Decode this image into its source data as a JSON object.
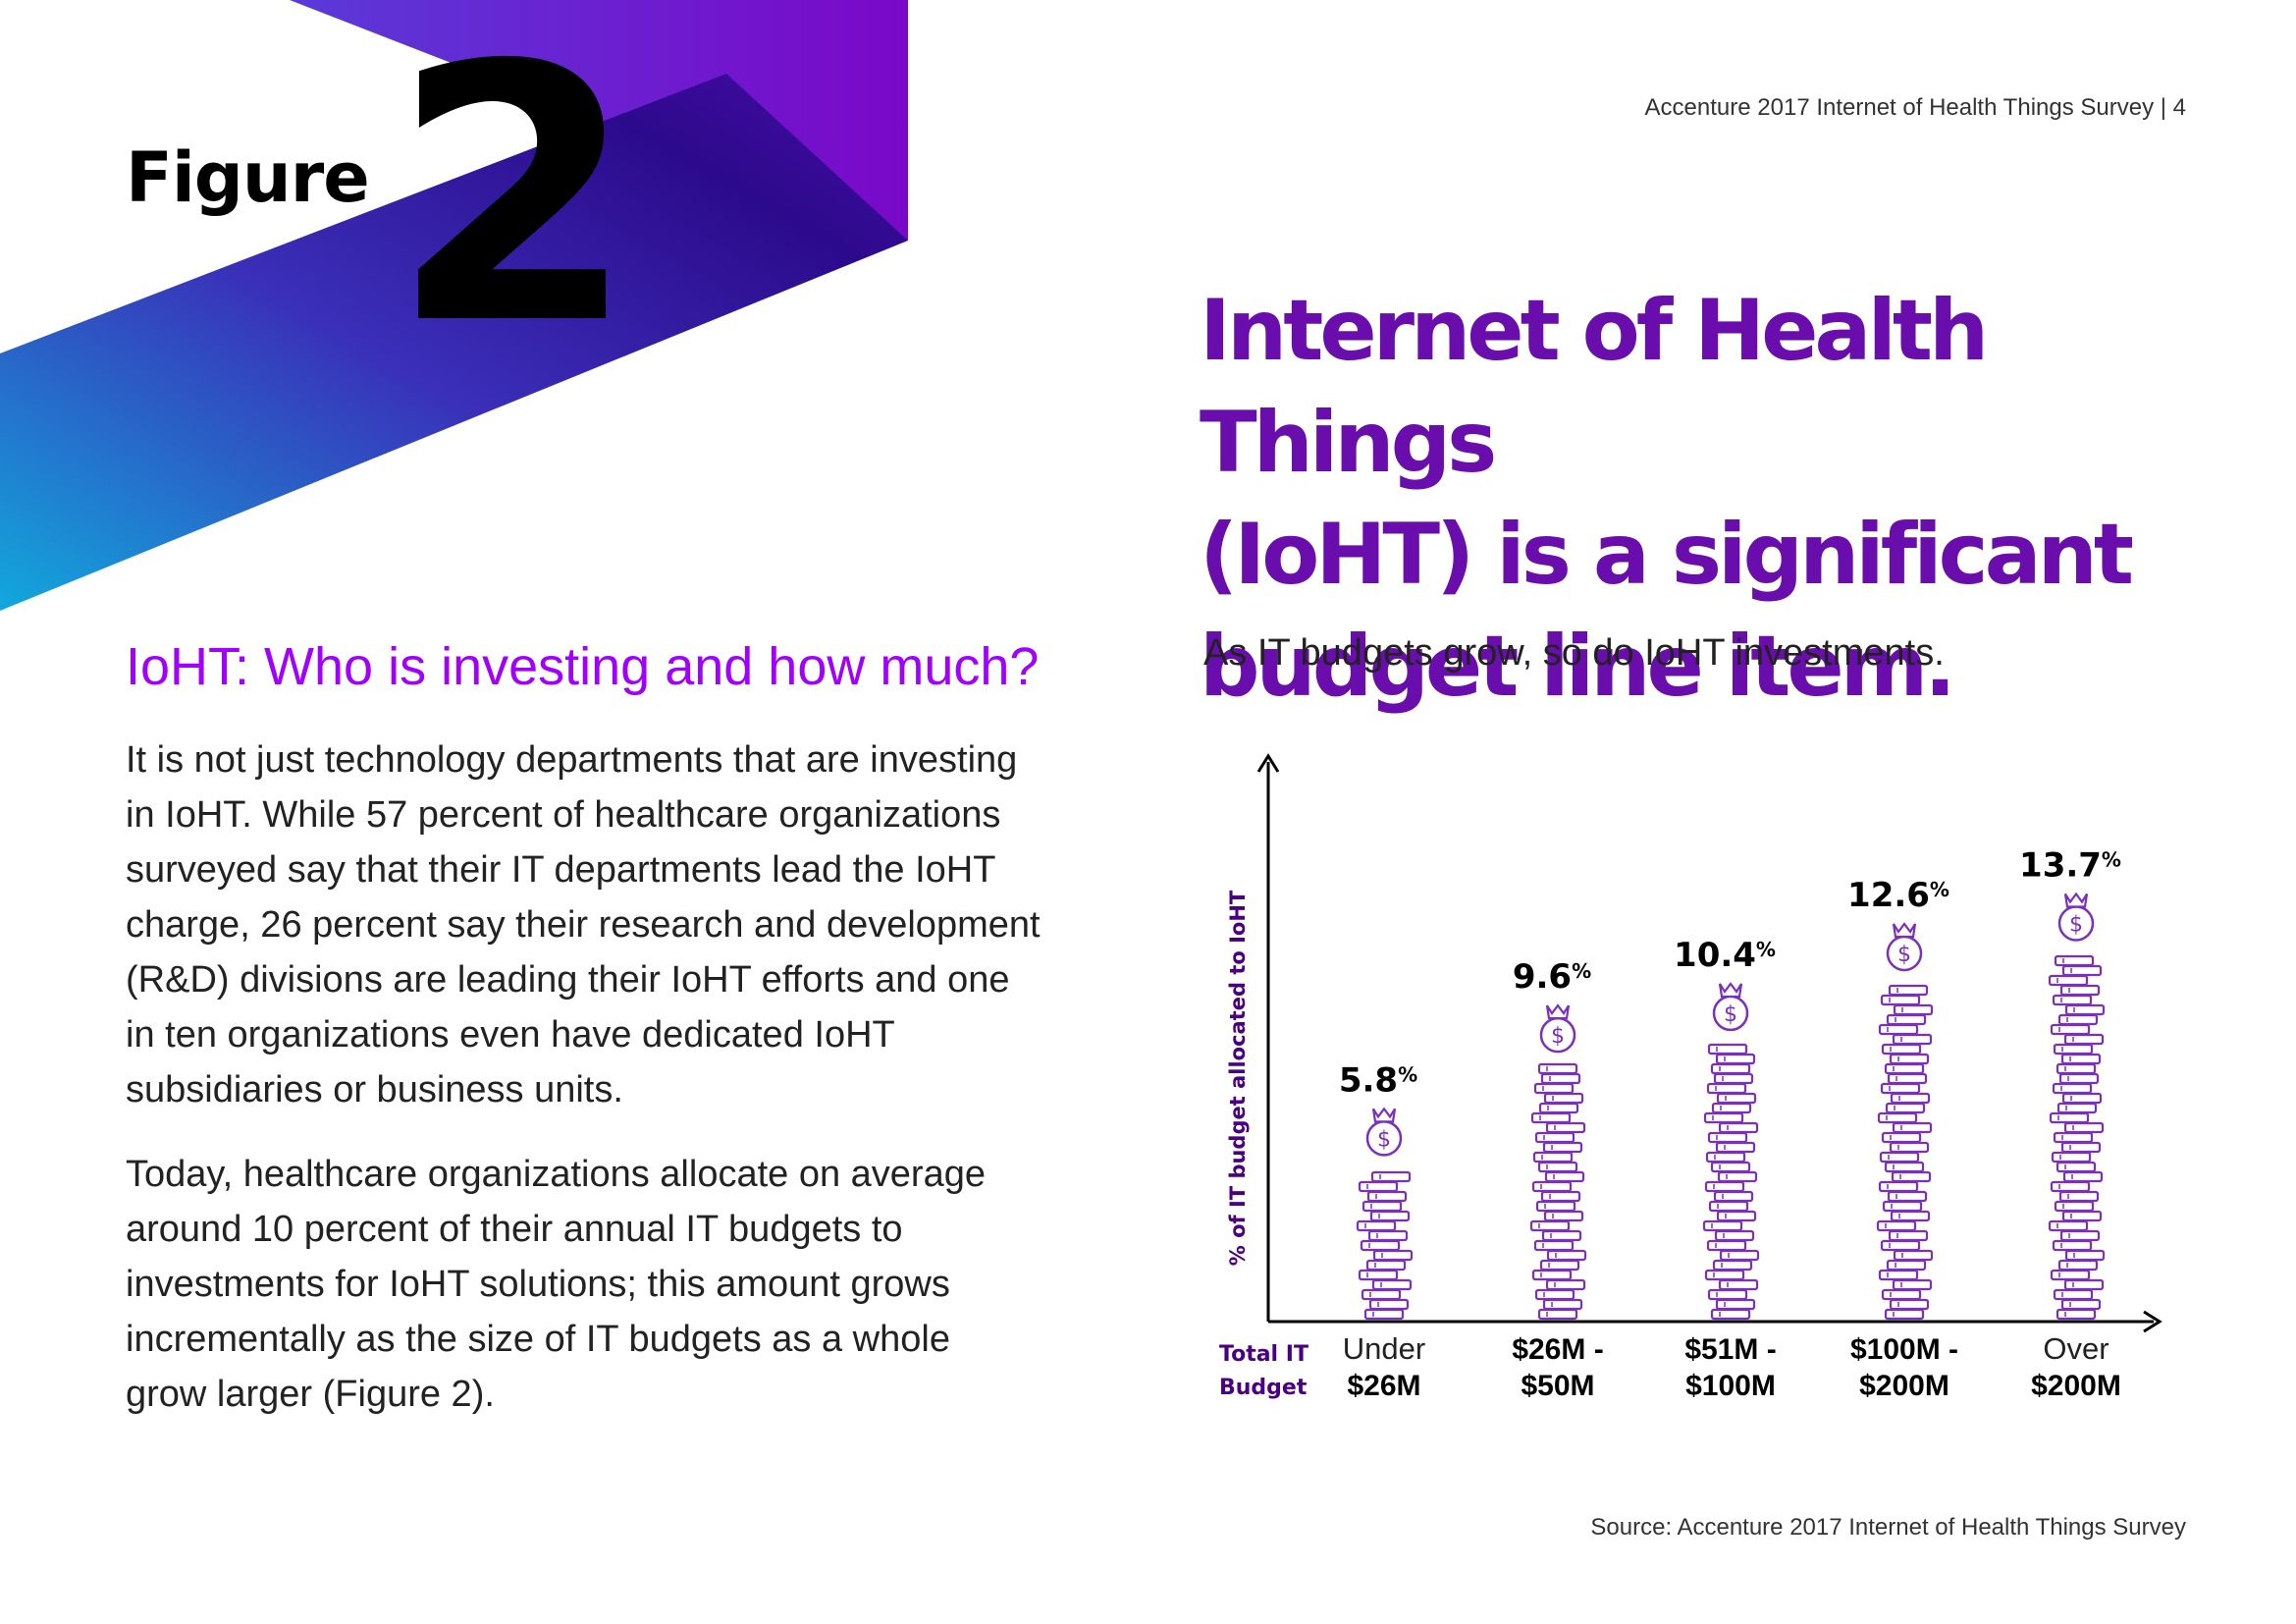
{
  "header": {
    "page_header": "Accenture 2017 Internet of Health Things Survey | 4",
    "figure_label": "Figure",
    "figure_number": "2"
  },
  "colors": {
    "accent_purple": "#a100ff",
    "title_purple": "#6a0dad",
    "chart_purple": "#7b2fbe",
    "axis_label_purple": "#4b0082"
  },
  "title": {
    "lines": [
      "Internet of Health Things",
      "(IoHT) is a significant",
      "budget line item."
    ],
    "subtitle": "As IT budgets grow, so do IoHT investments."
  },
  "body": {
    "heading": "IoHT: Who is investing and how much?",
    "para1_lines": [
      "It is not just technology departments that are investing",
      "in IoHT. While 57 percent of healthcare organizations",
      "surveyed say that their IT departments lead the IoHT",
      "charge, 26 percent say their research and development",
      "(R&D) divisions are leading their IoHT efforts and one",
      "in ten organizations even have dedicated IoHT",
      "subsidiaries or business units."
    ],
    "para2_lines": [
      "Today, healthcare organizations allocate on average",
      "around 10 percent of their annual IT budgets to",
      "investments for IoHT solutions; this amount grows",
      "incrementally as the size of IT budgets as a whole",
      "grow larger (Figure 2)."
    ]
  },
  "chart_data": {
    "type": "bar",
    "ylabel": "% of IT budget allocated to IoHT",
    "xlabel_lines": [
      "Total IT",
      "Budget"
    ],
    "categories": [
      {
        "line1": "Under",
        "line2": "$26M"
      },
      {
        "line1": "$26M -",
        "line2": "$50M"
      },
      {
        "line1": "$51M -",
        "line2": "$100M"
      },
      {
        "line1": "$100M -",
        "line2": "$200M"
      },
      {
        "line1": "Over",
        "line2": "$200M"
      }
    ],
    "values": [
      5.8,
      9.6,
      10.4,
      12.6,
      13.7
    ],
    "value_labels": [
      "5.8",
      "9.6",
      "10.4",
      "12.6",
      "13.7"
    ],
    "unit": "%",
    "icon": "money-bag-icon",
    "bar_style": "coin-stack"
  },
  "footer": {
    "source": "Source: Accenture 2017 Internet of Health Things Survey"
  }
}
